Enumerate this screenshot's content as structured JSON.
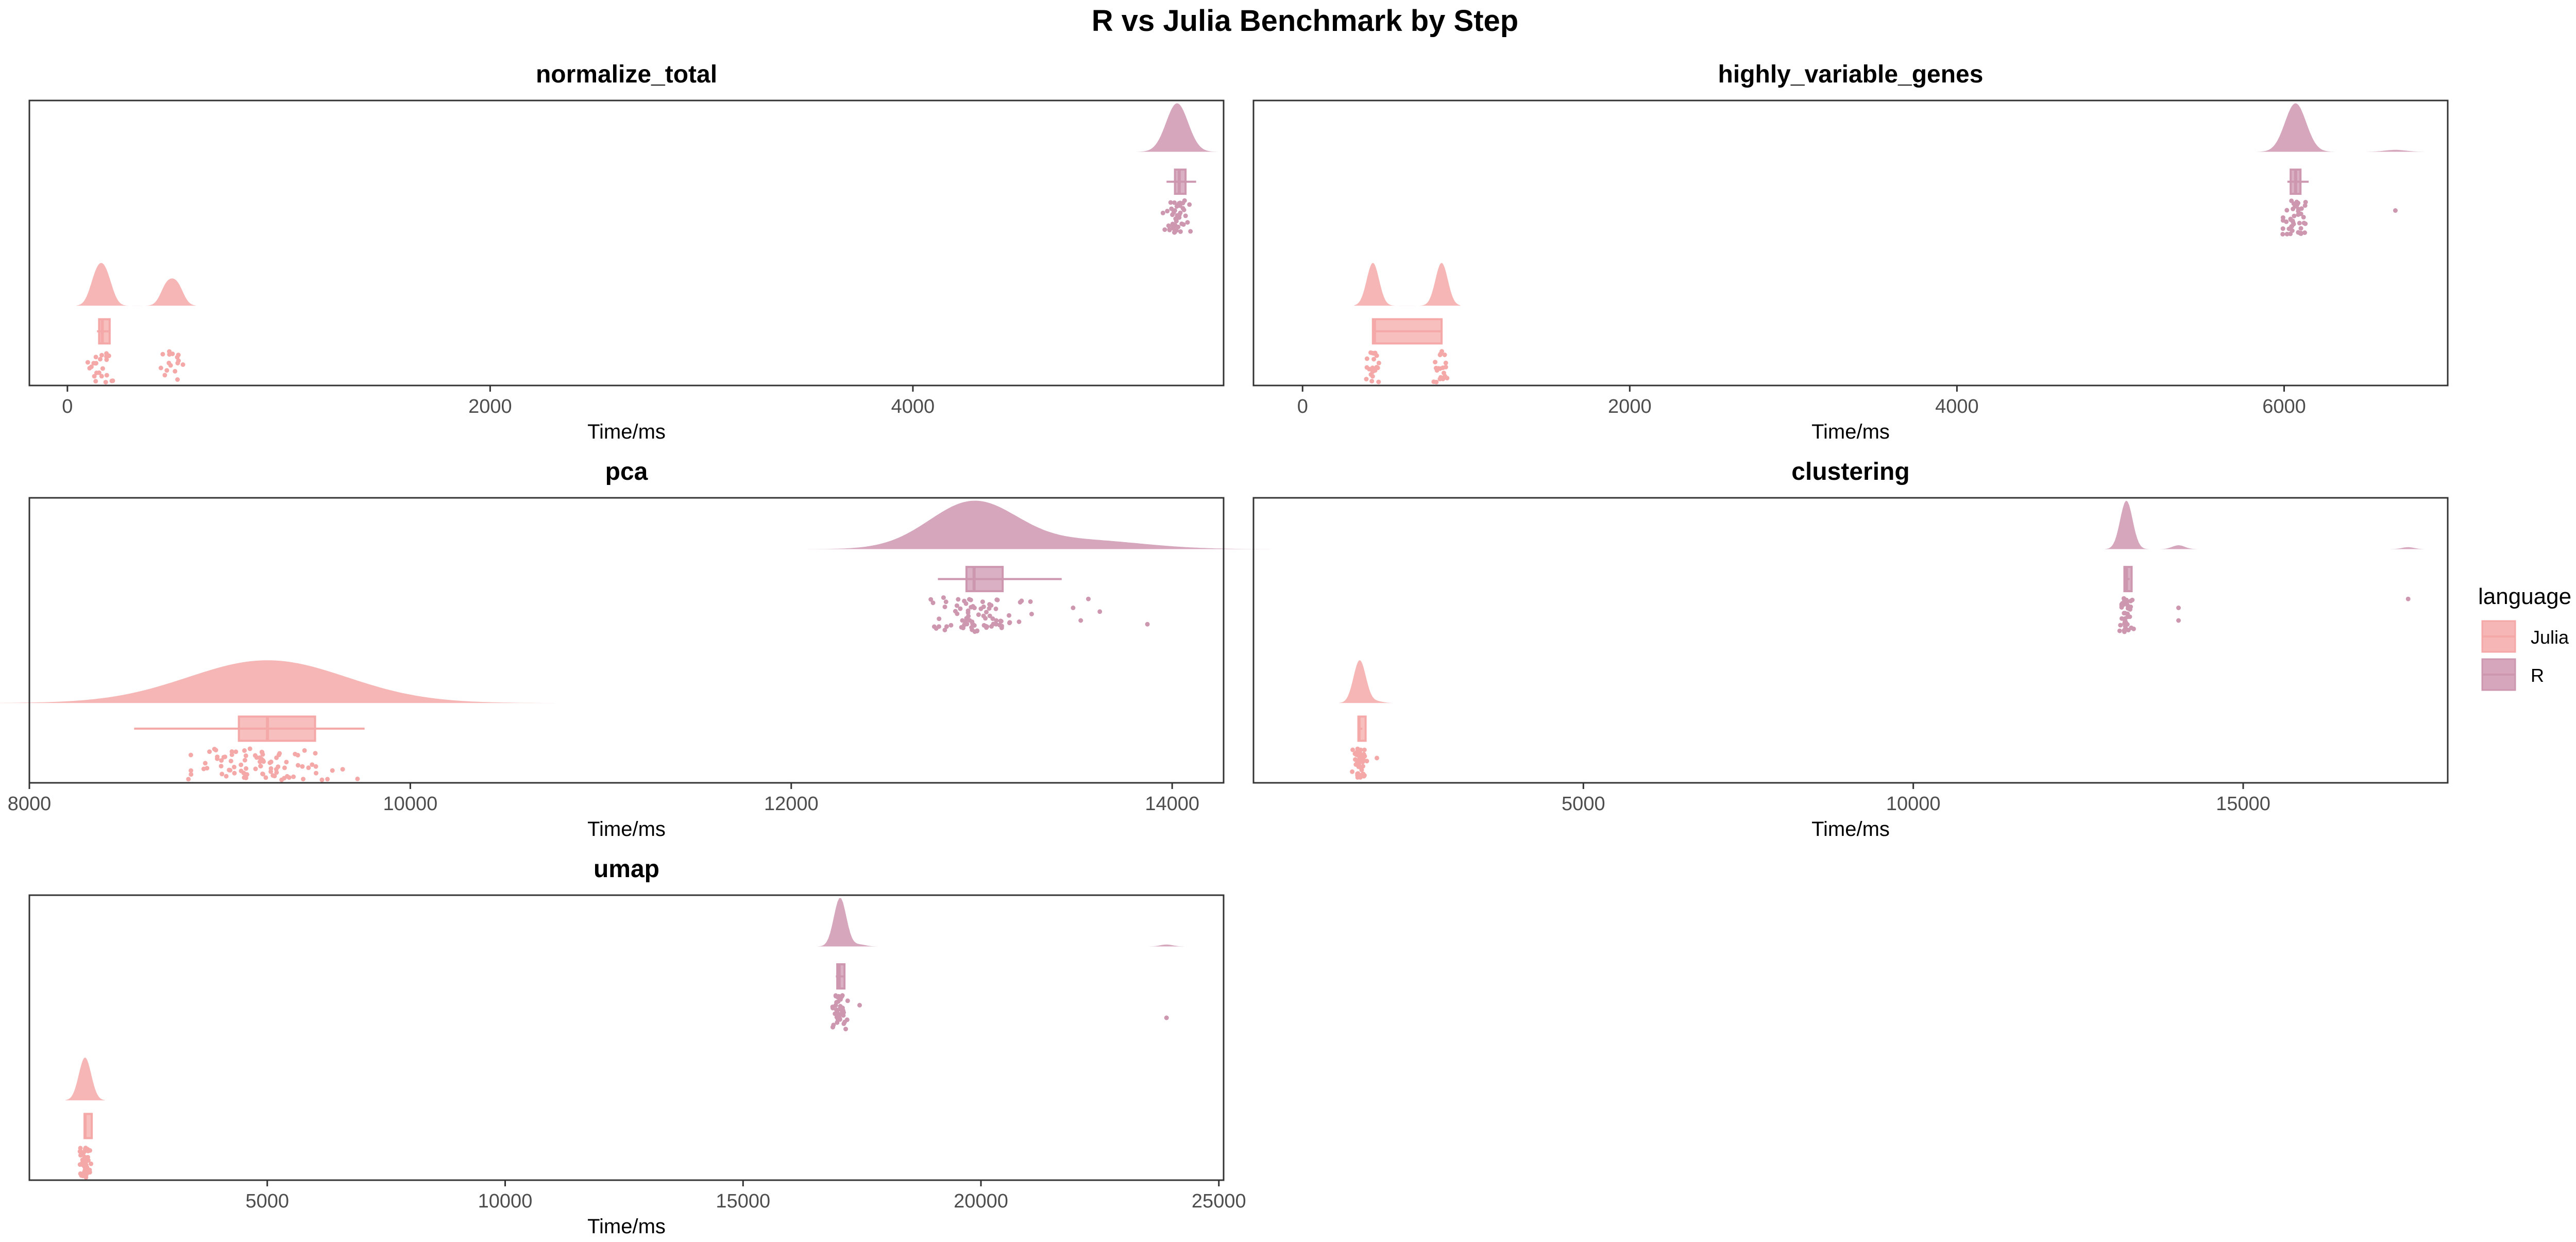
{
  "figure": {
    "title": "R vs Julia Benchmark by Step"
  },
  "legend": {
    "title": "language",
    "position": "right",
    "items": [
      {
        "label": "Julia",
        "color": "#F4A9A8"
      },
      {
        "label": "R",
        "color": "#CE97B0"
      }
    ]
  },
  "chart_data": [
    {
      "type": "raincloud",
      "title": "normalize_total",
      "xlabel": "Time/ms",
      "xlim": [
        -180,
        5470
      ],
      "xticks": [
        0,
        2000,
        4000
      ],
      "xtick_labels": [
        "0",
        "2000",
        "4000"
      ],
      "grid": false,
      "series": [
        {
          "name": "Julia",
          "box": {
            "min": 140,
            "q1": 150,
            "median": 165,
            "q3": 200,
            "max": 200
          },
          "cluster_centers": [
            130,
            160,
            190,
            470,
            520
          ],
          "cluster_spread": 20,
          "point_count": 40
        },
        {
          "name": "R",
          "box": {
            "min": 5200,
            "q1": 5240,
            "median": 5260,
            "q3": 5290,
            "max": 5340
          },
          "cluster_centers": [
            5250
          ],
          "cluster_spread": 40,
          "point_count": 45
        }
      ]
    },
    {
      "type": "raincloud",
      "title": "highly_variable_genes",
      "xlabel": "Time/ms",
      "xlim": [
        -300,
        7000
      ],
      "xticks": [
        0,
        2000,
        4000,
        6000
      ],
      "xtick_labels": [
        "0",
        "2000",
        "4000",
        "6000"
      ],
      "grid": false,
      "series": [
        {
          "name": "Julia",
          "box": {
            "min": 430,
            "q1": 430,
            "median": 440,
            "q3": 850,
            "max": 850
          },
          "cluster_centers": [
            430,
            850
          ],
          "cluster_spread": 5,
          "point_count": 40
        },
        {
          "name": "R",
          "box": {
            "min": 6020,
            "q1": 6040,
            "median": 6070,
            "q3": 6100,
            "max": 6150
          },
          "cluster_centers": [
            6070
          ],
          "cluster_spread": 50,
          "point_count": 45,
          "outliers": [
            6680
          ]
        }
      ]
    },
    {
      "type": "raincloud",
      "title": "pca",
      "xlabel": "Time/ms",
      "xlim": [
        8000,
        14270
      ],
      "xticks": [
        8000,
        10000,
        12000,
        14000
      ],
      "xtick_labels": [
        "8000",
        "10000",
        "12000",
        "14000"
      ],
      "grid": false,
      "series": [
        {
          "name": "Julia",
          "box": {
            "min": 8550,
            "q1": 9100,
            "median": 9250,
            "q3": 9500,
            "max": 9760
          },
          "cluster_centers": [
            9250
          ],
          "cluster_spread": 320,
          "point_count": 90
        },
        {
          "name": "R",
          "box": {
            "min": 12770,
            "q1": 12920,
            "median": 12960,
            "q3": 13110,
            "max": 13420
          },
          "cluster_centers": [
            12960
          ],
          "cluster_spread": 180,
          "point_count": 80,
          "outliers": [
            13480,
            13520,
            13560,
            13620,
            13870
          ]
        }
      ]
    },
    {
      "type": "raincloud",
      "title": "clustering",
      "xlabel": "Time/ms",
      "xlim": [
        0,
        18100
      ],
      "xticks": [
        5000,
        10000,
        15000
      ],
      "xtick_labels": [
        "5000",
        "10000",
        "15000"
      ],
      "grid": false,
      "series": [
        {
          "name": "Julia",
          "box": {
            "min": 1580,
            "q1": 1590,
            "median": 1600,
            "q3": 1620,
            "max": 1650
          },
          "cluster_centers": [
            1610
          ],
          "cluster_spread": 30,
          "point_count": 45,
          "outliers": [
            1870
          ]
        },
        {
          "name": "R",
          "box": {
            "min": 13190,
            "q1": 13200,
            "median": 13230,
            "q3": 13260,
            "max": 13280
          },
          "cluster_centers": [
            13230
          ],
          "cluster_spread": 40,
          "point_count": 45,
          "outliers": [
            14020,
            14020,
            17500
          ]
        }
      ]
    },
    {
      "type": "raincloud",
      "title": "umap",
      "xlabel": "Time/ms",
      "xlim": [
        0,
        25100
      ],
      "xticks": [
        5000,
        10000,
        15000,
        20000,
        25000
      ],
      "xtick_labels": [
        "5000",
        "10000",
        "15000",
        "20000",
        "25000"
      ],
      "grid": false,
      "series": [
        {
          "name": "Julia",
          "box": {
            "min": 1150,
            "q1": 1160,
            "median": 1170,
            "q3": 1190,
            "max": 1200
          },
          "cluster_centers": [
            1170
          ],
          "cluster_spread": 20,
          "point_count": 45
        },
        {
          "name": "R",
          "box": {
            "min": 16950,
            "q1": 16980,
            "median": 17020,
            "q3": 17060,
            "max": 17120
          },
          "cluster_centers": [
            17040
          ],
          "cluster_spread": 60,
          "point_count": 45,
          "outliers": [
            17450,
            23900
          ]
        }
      ]
    }
  ]
}
